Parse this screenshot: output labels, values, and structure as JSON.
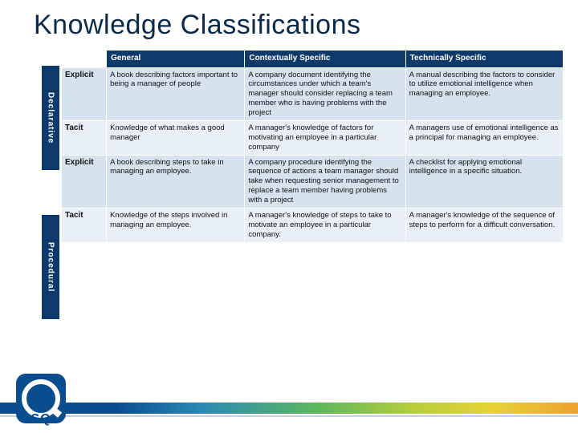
{
  "title": "Knowledge Classifications",
  "columns": {
    "c0": "",
    "c1": "General",
    "c2": "Contextually Specific",
    "c3": "Technically Specific"
  },
  "groups": {
    "declarative": {
      "label": "Declarative"
    },
    "procedural": {
      "label": "Procedural"
    }
  },
  "rows": {
    "decl_explicit": {
      "label": "Explicit",
      "general": "A book describing factors important to being a manager of people",
      "contextual": "A company document identifying the circumstances under which a team's manager should consider replacing a team member who is having problems with the project",
      "technical": "A manual describing the factors to consider to utilize emotional intelligence when managing an employee."
    },
    "decl_tacit": {
      "label": "Tacit",
      "general": "Knowledge of what makes a good manager",
      "contextual": "A manager's knowledge of factors for motivating an employee in a particular company",
      "technical": "A managers use of emotional intelligence as a principal for managing an employee."
    },
    "proc_explicit": {
      "label": "Explicit",
      "general": "A book describing steps to take in managing an employee.",
      "contextual": "A company procedure identifying the sequence of actions a team manager should take when requesting senior management to replace a team member having problems with a project",
      "technical": "A checklist for applying emotional intelligence in a specific situation."
    },
    "proc_tacit": {
      "label": "Tacit",
      "general": " Knowledge of the steps involved in managing an employee.",
      "contextual": "A manager's knowledge of steps to take to motivate an employee in a particular company.",
      "technical": "A manager's knowledge of the sequence of steps to perform for a difficult conversation."
    }
  },
  "colors": {
    "header_bg": "#0e3a6b",
    "row_alt_a": "#d7e2ef",
    "row_alt_b": "#e9eff7",
    "title_color": "#0a2a4a",
    "brand": "#0a4d8f"
  },
  "logo_text": "ASQ"
}
